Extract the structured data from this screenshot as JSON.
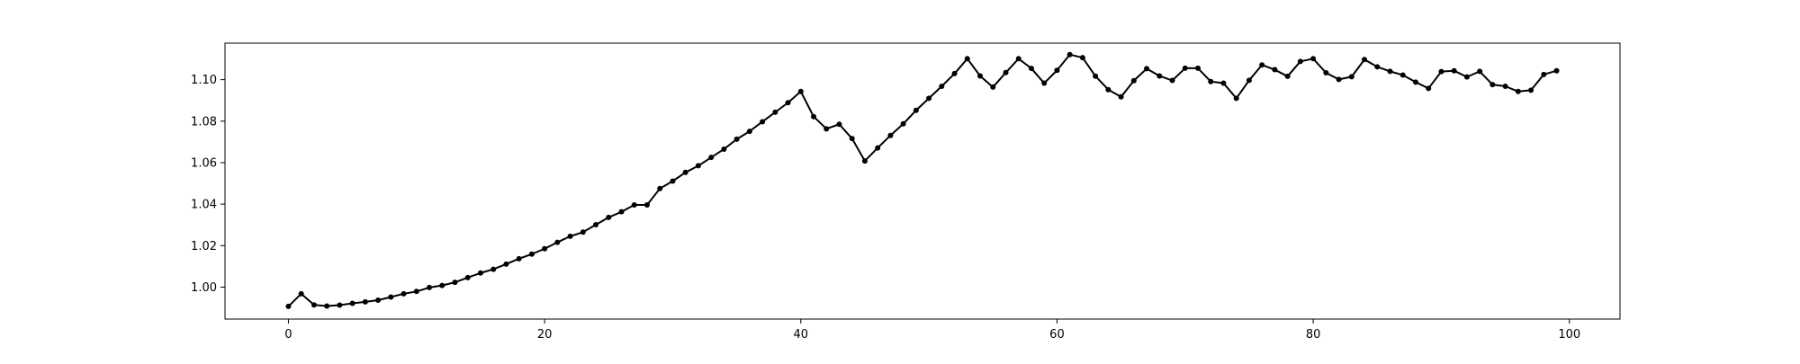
{
  "chart_data": {
    "type": "line",
    "title": "",
    "xlabel": "",
    "ylabel": "",
    "xlim": [
      -4.95,
      103.95
    ],
    "ylim": [
      0.9846,
      1.1176
    ],
    "x_ticks": [
      0,
      20,
      40,
      60,
      80,
      100
    ],
    "x_tick_labels": [
      "0",
      "20",
      "40",
      "60",
      "80",
      "100"
    ],
    "y_ticks": [
      1.0,
      1.02,
      1.04,
      1.06,
      1.08,
      1.1
    ],
    "y_tick_labels": [
      "1.00",
      "1.02",
      "1.04",
      "1.06",
      "1.08",
      "1.10"
    ],
    "grid": false,
    "legend": "none",
    "line_color": "#000000",
    "marker": "circle",
    "series": [
      {
        "x": [
          0,
          1,
          2,
          3,
          4,
          5,
          6,
          7,
          8,
          9,
          10,
          11,
          12,
          13,
          14,
          15,
          16,
          17,
          18,
          19,
          20,
          21,
          22,
          23,
          24,
          25,
          26,
          27,
          28,
          29,
          30,
          31,
          32,
          33,
          34,
          35,
          36,
          37,
          38,
          39,
          40,
          41,
          42,
          43,
          44,
          45,
          46,
          47,
          48,
          49,
          50,
          51,
          52,
          53,
          54,
          55,
          56,
          57,
          58,
          59,
          60,
          61,
          62,
          63,
          64,
          65,
          66,
          67,
          68,
          69,
          70,
          71,
          72,
          73,
          74,
          75,
          76,
          77,
          78,
          79,
          80,
          81,
          82,
          83,
          84,
          85,
          86,
          87,
          88,
          89,
          90,
          91,
          92,
          93,
          94,
          95,
          96,
          97,
          98,
          99
        ],
        "values": [
          0.9907,
          0.9968,
          0.9914,
          0.9909,
          0.9913,
          0.9922,
          0.9929,
          0.9937,
          0.9952,
          0.9968,
          0.9979,
          0.9998,
          1.0008,
          1.0023,
          1.0046,
          1.0068,
          1.0086,
          1.0111,
          1.0137,
          1.0159,
          1.0185,
          1.0216,
          1.0245,
          1.0265,
          1.0301,
          1.0336,
          1.0363,
          1.0396,
          1.0396,
          1.0475,
          1.0511,
          1.0553,
          1.0585,
          1.0625,
          1.0665,
          1.0713,
          1.0751,
          1.0797,
          1.0843,
          1.0889,
          1.0943,
          1.0822,
          1.0763,
          1.0785,
          1.0716,
          1.0608,
          1.0671,
          1.0731,
          1.0787,
          1.0852,
          1.091,
          1.0968,
          1.1029,
          1.1101,
          1.1018,
          1.0964,
          1.1034,
          1.1101,
          1.1054,
          1.0983,
          1.1045,
          1.1121,
          1.1106,
          1.1017,
          1.0952,
          1.0917,
          1.0995,
          1.1053,
          1.1018,
          1.0996,
          1.1055,
          1.1055,
          1.0991,
          1.0983,
          1.091,
          1.0997,
          1.1071,
          1.1048,
          1.1016,
          1.1088,
          1.1101,
          1.1033,
          1.1001,
          1.1014,
          1.1097,
          1.1062,
          1.104,
          1.1022,
          1.0988,
          1.0958,
          1.1039,
          1.1043,
          1.1013,
          1.104,
          1.0976,
          1.0968,
          1.0943,
          1.0949,
          1.1025,
          1.1043
        ]
      }
    ]
  }
}
